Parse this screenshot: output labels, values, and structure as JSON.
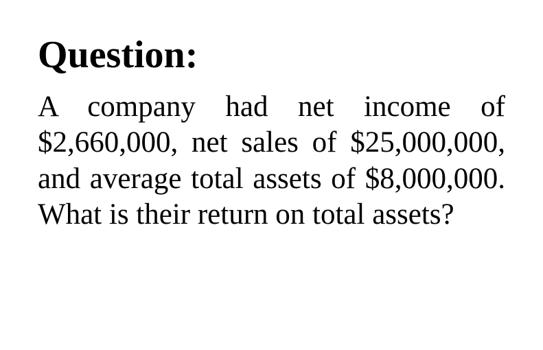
{
  "document": {
    "heading": "Question:",
    "body": "A company had net income of $2,660,000, net sales of $25,000,000, and average total assets of $8,000,000. What is their return on total assets?",
    "font_family": "serif",
    "heading_fontsize": 56,
    "heading_weight": "bold",
    "body_fontsize": 43,
    "body_alignment": "justify",
    "text_color": "#000000",
    "background_color": "#ffffff"
  }
}
